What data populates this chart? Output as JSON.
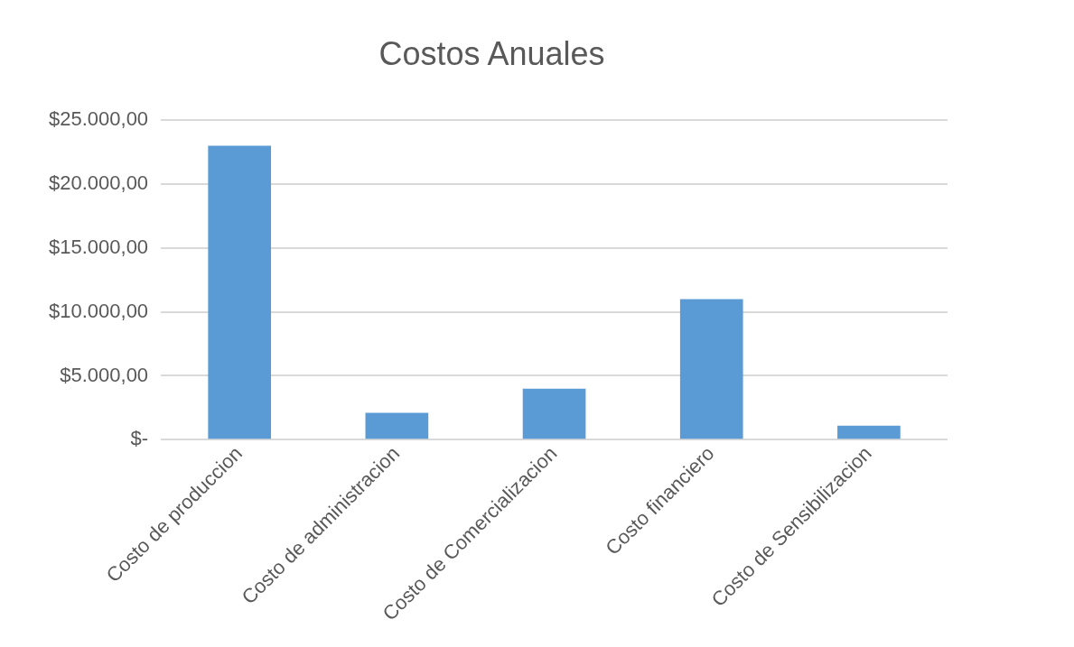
{
  "chart_data": {
    "type": "bar",
    "title": "Costos Anuales",
    "categories": [
      "Costo de produccion",
      "Costo de administracion",
      "Costo de Comercializacion",
      "Costo financiero",
      "Costo de Sensibilizacion"
    ],
    "values": [
      23000,
      2100,
      4000,
      11000,
      1100
    ],
    "color": "#5b9bd5",
    "ylim": [
      0,
      25000
    ],
    "yticks": [
      {
        "value": 0,
        "label": "$-"
      },
      {
        "value": 5000,
        "label": "$5.000,00"
      },
      {
        "value": 10000,
        "label": "$10.000,00"
      },
      {
        "value": 15000,
        "label": "$15.000,00"
      },
      {
        "value": 20000,
        "label": "$20.000,00"
      },
      {
        "value": 25000,
        "label": "$25.000,00"
      }
    ],
    "grid": "y",
    "legend": false
  }
}
